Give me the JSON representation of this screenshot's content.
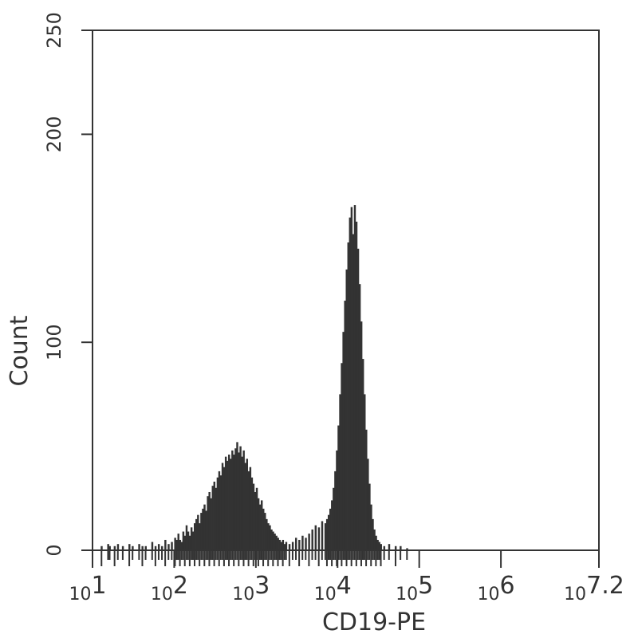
{
  "chart_data": {
    "type": "histogram",
    "xlabel": "CD19-PE",
    "ylabel": "Count",
    "x_scale": "log10",
    "xlim": [
      1,
      7.2
    ],
    "ylim": [
      0,
      250
    ],
    "grid": false,
    "legend": "none",
    "bar_color": "#333333",
    "yticks": [
      {
        "value": 0,
        "label": "0"
      },
      {
        "value": 100,
        "label": "100"
      },
      {
        "value": 200,
        "label": "200"
      },
      {
        "value": 250,
        "label": "250"
      }
    ],
    "xticks": [
      {
        "value": 1,
        "base": "10",
        "exp": "1"
      },
      {
        "value": 2,
        "base": "10",
        "exp": "2"
      },
      {
        "value": 3,
        "base": "10",
        "exp": "3"
      },
      {
        "value": 4,
        "base": "10",
        "exp": "4"
      },
      {
        "value": 5,
        "base": "10",
        "exp": "5"
      },
      {
        "value": 6,
        "base": "10",
        "exp": "6"
      },
      {
        "value": 7.2,
        "base": "10",
        "exp": "7.2"
      }
    ],
    "bin_width": 0.02,
    "bins": [
      [
        1.1,
        2
      ],
      [
        1.18,
        3
      ],
      [
        1.2,
        2
      ],
      [
        1.26,
        2
      ],
      [
        1.3,
        3
      ],
      [
        1.36,
        2
      ],
      [
        1.44,
        3
      ],
      [
        1.48,
        2
      ],
      [
        1.56,
        3
      ],
      [
        1.6,
        2
      ],
      [
        1.64,
        2
      ],
      [
        1.72,
        4
      ],
      [
        1.76,
        2
      ],
      [
        1.8,
        3
      ],
      [
        1.84,
        2
      ],
      [
        1.88,
        5
      ],
      [
        1.92,
        3
      ],
      [
        1.96,
        4
      ],
      [
        2.0,
        6
      ],
      [
        2.02,
        5
      ],
      [
        2.04,
        8
      ],
      [
        2.06,
        5
      ],
      [
        2.08,
        4
      ],
      [
        2.1,
        9
      ],
      [
        2.12,
        7
      ],
      [
        2.14,
        12
      ],
      [
        2.16,
        9
      ],
      [
        2.18,
        7
      ],
      [
        2.2,
        11
      ],
      [
        2.22,
        9
      ],
      [
        2.24,
        13
      ],
      [
        2.26,
        15
      ],
      [
        2.28,
        17
      ],
      [
        2.3,
        13
      ],
      [
        2.32,
        18
      ],
      [
        2.34,
        20
      ],
      [
        2.36,
        22
      ],
      [
        2.38,
        19
      ],
      [
        2.4,
        26
      ],
      [
        2.42,
        28
      ],
      [
        2.44,
        25
      ],
      [
        2.46,
        31
      ],
      [
        2.48,
        33
      ],
      [
        2.5,
        30
      ],
      [
        2.52,
        35
      ],
      [
        2.54,
        38
      ],
      [
        2.56,
        36
      ],
      [
        2.58,
        42
      ],
      [
        2.6,
        40
      ],
      [
        2.62,
        45
      ],
      [
        2.64,
        43
      ],
      [
        2.66,
        46
      ],
      [
        2.68,
        44
      ],
      [
        2.7,
        48
      ],
      [
        2.72,
        46
      ],
      [
        2.74,
        49
      ],
      [
        2.76,
        52
      ],
      [
        2.78,
        47
      ],
      [
        2.8,
        50
      ],
      [
        2.82,
        45
      ],
      [
        2.84,
        48
      ],
      [
        2.86,
        42
      ],
      [
        2.88,
        44
      ],
      [
        2.9,
        38
      ],
      [
        2.92,
        40
      ],
      [
        2.94,
        35
      ],
      [
        2.96,
        32
      ],
      [
        2.98,
        28
      ],
      [
        3.0,
        30
      ],
      [
        3.02,
        25
      ],
      [
        3.04,
        22
      ],
      [
        3.06,
        24
      ],
      [
        3.08,
        20
      ],
      [
        3.1,
        18
      ],
      [
        3.12,
        15
      ],
      [
        3.14,
        13
      ],
      [
        3.16,
        12
      ],
      [
        3.18,
        10
      ],
      [
        3.2,
        9
      ],
      [
        3.22,
        8
      ],
      [
        3.24,
        7
      ],
      [
        3.26,
        6
      ],
      [
        3.28,
        5
      ],
      [
        3.3,
        4
      ],
      [
        3.32,
        5
      ],
      [
        3.34,
        3
      ],
      [
        3.36,
        4
      ],
      [
        3.4,
        3
      ],
      [
        3.44,
        4
      ],
      [
        3.48,
        6
      ],
      [
        3.52,
        5
      ],
      [
        3.56,
        7
      ],
      [
        3.6,
        6
      ],
      [
        3.64,
        8
      ],
      [
        3.68,
        10
      ],
      [
        3.72,
        12
      ],
      [
        3.76,
        11
      ],
      [
        3.8,
        14
      ],
      [
        3.84,
        13
      ],
      [
        3.86,
        15
      ],
      [
        3.88,
        17
      ],
      [
        3.9,
        20
      ],
      [
        3.92,
        24
      ],
      [
        3.94,
        30
      ],
      [
        3.96,
        38
      ],
      [
        3.98,
        48
      ],
      [
        4.0,
        60
      ],
      [
        4.02,
        75
      ],
      [
        4.04,
        90
      ],
      [
        4.06,
        105
      ],
      [
        4.08,
        120
      ],
      [
        4.1,
        135
      ],
      [
        4.12,
        148
      ],
      [
        4.14,
        160
      ],
      [
        4.16,
        165
      ],
      [
        4.18,
        152
      ],
      [
        4.2,
        166
      ],
      [
        4.22,
        158
      ],
      [
        4.24,
        145
      ],
      [
        4.26,
        128
      ],
      [
        4.28,
        110
      ],
      [
        4.3,
        92
      ],
      [
        4.32,
        75
      ],
      [
        4.34,
        58
      ],
      [
        4.36,
        44
      ],
      [
        4.38,
        32
      ],
      [
        4.4,
        22
      ],
      [
        4.42,
        15
      ],
      [
        4.44,
        10
      ],
      [
        4.46,
        7
      ],
      [
        4.48,
        5
      ],
      [
        4.5,
        4
      ],
      [
        4.52,
        3
      ],
      [
        4.56,
        2
      ],
      [
        4.62,
        3
      ],
      [
        4.7,
        2
      ],
      [
        4.76,
        2
      ],
      [
        4.84,
        1
      ]
    ]
  }
}
